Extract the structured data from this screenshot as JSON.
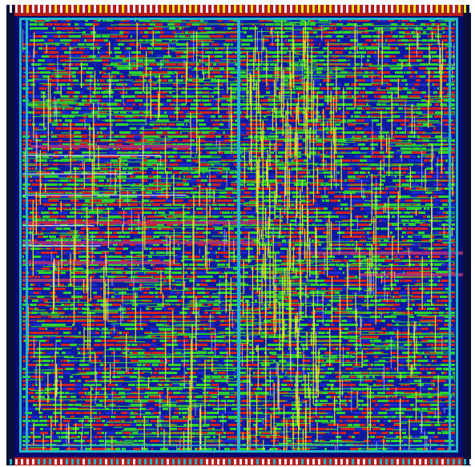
{
  "layout": {
    "colors": {
      "die_background": "#050a6e",
      "cell_fill": "#0b1a9e",
      "metal_red": "#d0231f",
      "metal_green": "#2fd32a",
      "metal_yellow": "#e8e62a",
      "metal_cyan": "#27b6c9",
      "metal_magenta": "#b0307a",
      "io_ring_red": "#b51c1c",
      "white": "#e9e9f2"
    },
    "layers": [
      "metal_red",
      "metal_green",
      "metal_yellow",
      "metal_cyan",
      "metal_magenta"
    ]
  }
}
